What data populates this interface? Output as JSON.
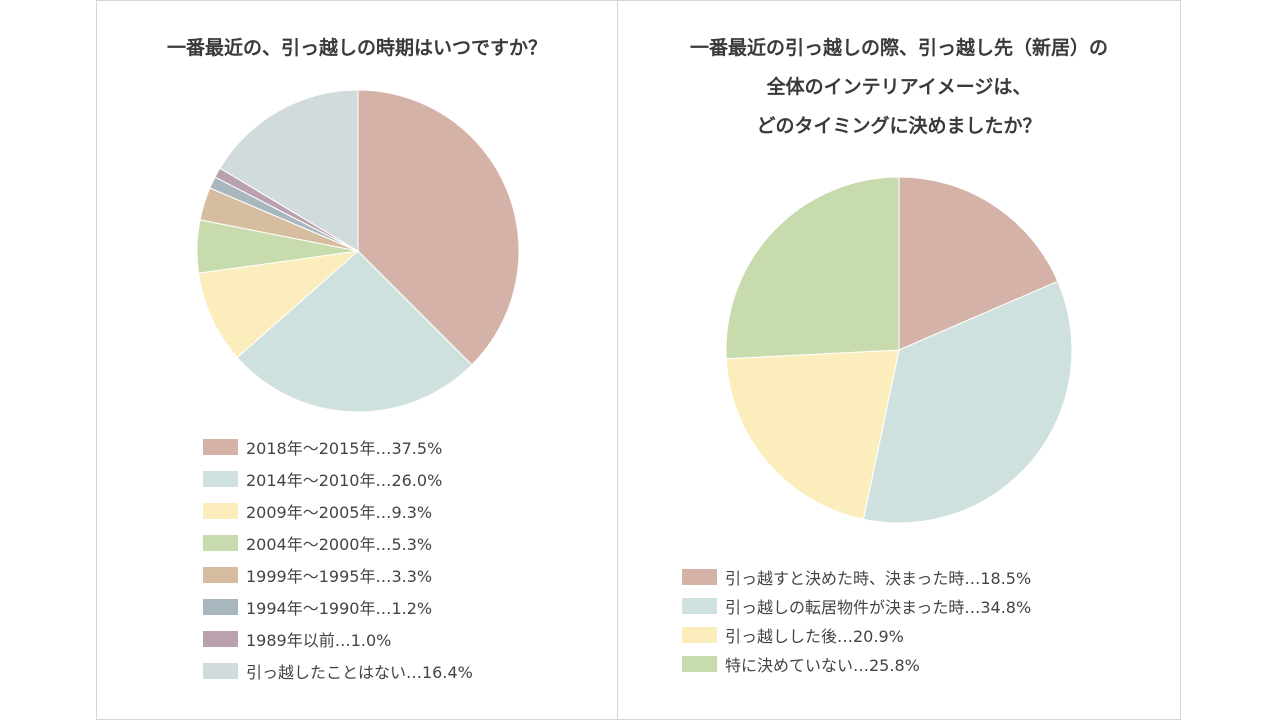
{
  "chart_data": [
    {
      "type": "pie",
      "title_lines": [
        "一番最近の、引っ越しの時期はいつですか？"
      ],
      "categories": [
        "2018年～2015年",
        "2014年～2010年",
        "2009年～2005年",
        "2004年～2000年",
        "1999年～1995年",
        "1994年～1990年",
        "1989年以前",
        "引っ越したことはない"
      ],
      "values": [
        37.5,
        26.0,
        9.3,
        5.3,
        3.3,
        1.2,
        1.0,
        16.4
      ],
      "labels": [
        "2018年～2015年…37.5%",
        "2014年～2010年…26.0%",
        "2009年～2005年…9.3%",
        "2004年～2000年…5.3%",
        "1999年～1995年…3.3%",
        "1994年～1990年…1.2%",
        "1989年以前…1.0%",
        "引っ越したことはない…16.4%"
      ],
      "colors": [
        "#d4b2a8",
        "#cfe1de",
        "#fcedbd",
        "#c8dbac",
        "#d6bda0",
        "#a8b7bd",
        "#b9a1ad",
        "#d2dbdc"
      ],
      "legend_position": "bottom"
    },
    {
      "type": "pie",
      "title_lines": [
        "一番最近の引っ越しの際、引っ越し先（新居）の",
        "全体のインテリアイメージは、",
        "どのタイミングに決めましたか？"
      ],
      "categories": [
        "引っ越すと決めた時、決まった時",
        "引っ越しの転居物件が決まった時",
        "引っ越しした後",
        "特に決めていない"
      ],
      "values": [
        18.5,
        34.8,
        20.9,
        25.8
      ],
      "labels": [
        "引っ越すと決めた時、決まった時…18.5%",
        "引っ越しの転居物件が決まった時…34.8%",
        "引っ越しした後…20.9%",
        "特に決めていない…25.8%"
      ],
      "colors": [
        "#d4b2a8",
        "#cfe1de",
        "#fcedbd",
        "#c8dbac"
      ],
      "legend_position": "bottom"
    }
  ]
}
